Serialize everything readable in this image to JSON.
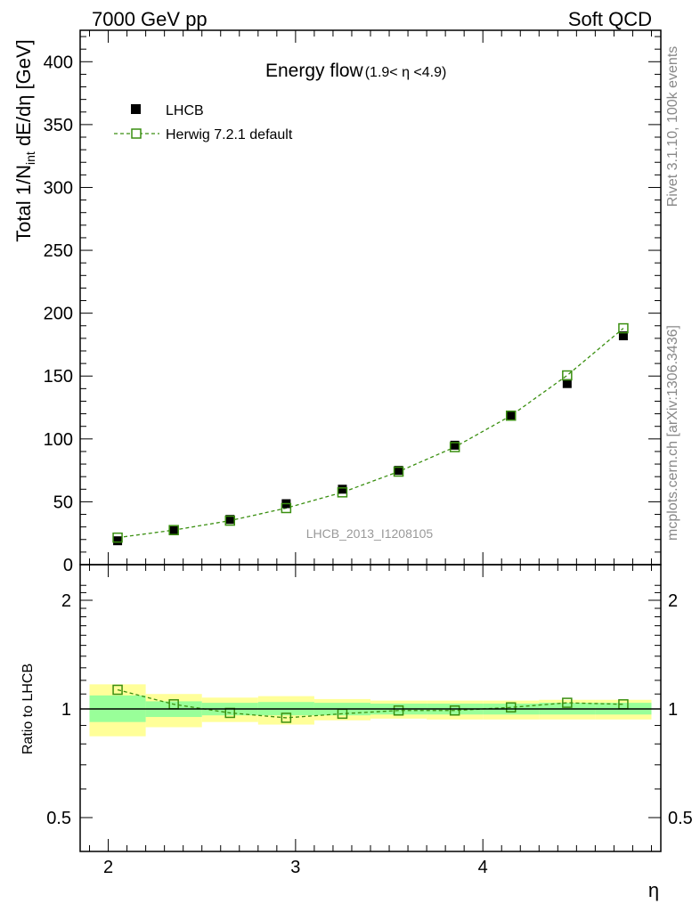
{
  "header": {
    "left": "7000 GeV pp",
    "right": "Soft QCD"
  },
  "side": {
    "rivet": "Rivet 3.1.10,  100k events",
    "ref": "mcplots.cern.ch [arXiv:1306.3436]"
  },
  "chart_data": {
    "type": "scatter",
    "title": "Energy flow",
    "subtitle": "(1.9< η <4.9)",
    "watermark": "LHCB_2013_I1208105",
    "xlabel": "η",
    "ylabel": "Total 1/N",
    "ylabel_sub": "int",
    "ylabel_tail": " dE/dη [GeV]",
    "ratio_ylabel": "Ratio to LHCB",
    "xlim": [
      1.85,
      4.95
    ],
    "ylim": [
      0,
      425
    ],
    "ratio_ylim": [
      0.4,
      2.3
    ],
    "x_ticks": [
      {
        "v": 2,
        "label": "2"
      },
      {
        "v": 3,
        "label": "3"
      },
      {
        "v": 4,
        "label": "4"
      }
    ],
    "y_ticks": [
      {
        "v": 0,
        "label": "0"
      },
      {
        "v": 50,
        "label": "50"
      },
      {
        "v": 100,
        "label": "100"
      },
      {
        "v": 150,
        "label": "150"
      },
      {
        "v": 200,
        "label": "200"
      },
      {
        "v": 250,
        "label": "250"
      },
      {
        "v": 300,
        "label": "300"
      },
      {
        "v": 350,
        "label": "350"
      },
      {
        "v": 400,
        "label": "400"
      }
    ],
    "ratio_ticks": [
      {
        "v": 0.5,
        "label": "0.5"
      },
      {
        "v": 1,
        "label": "1"
      },
      {
        "v": 2,
        "label": "2"
      }
    ],
    "legend_position": "top-left",
    "bin_edges": [
      1.9,
      2.2,
      2.5,
      2.8,
      3.1,
      3.4,
      3.7,
      4.0,
      4.3,
      4.6,
      4.9
    ],
    "x": [
      2.05,
      2.35,
      2.65,
      2.95,
      3.25,
      3.55,
      3.85,
      4.15,
      4.45,
      4.75
    ],
    "series": [
      {
        "name": "LHCB",
        "color": "#000000",
        "marker": "filled-square",
        "values": [
          19,
          27,
          36,
          48.5,
          60,
          75,
          95,
          119,
          144,
          182
        ]
      },
      {
        "name": "Herwig 7.2.1 default",
        "color": "#3a8f10",
        "marker": "open-square",
        "line": "dashed",
        "values": [
          21.5,
          27.5,
          35,
          45,
          57.5,
          74,
          93.5,
          118.5,
          150.5,
          188
        ]
      }
    ],
    "ratio": {
      "values": [
        1.13,
        1.03,
        0.975,
        0.945,
        0.97,
        0.99,
        0.99,
        1.01,
        1.04,
        1.03
      ],
      "band_inner": [
        [
          0.92,
          1.09
        ],
        [
          0.95,
          1.05
        ],
        [
          0.96,
          1.04
        ],
        [
          0.96,
          1.045
        ],
        [
          0.96,
          1.04
        ],
        [
          0.965,
          1.035
        ],
        [
          0.965,
          1.035
        ],
        [
          0.965,
          1.035
        ],
        [
          0.965,
          1.04
        ],
        [
          0.965,
          1.04
        ]
      ],
      "band_outer": [
        [
          0.84,
          1.17
        ],
        [
          0.89,
          1.1
        ],
        [
          0.92,
          1.075
        ],
        [
          0.905,
          1.085
        ],
        [
          0.93,
          1.065
        ],
        [
          0.94,
          1.055
        ],
        [
          0.935,
          1.055
        ],
        [
          0.935,
          1.055
        ],
        [
          0.935,
          1.06
        ],
        [
          0.935,
          1.06
        ]
      ],
      "band_inner_color": "#99ff99",
      "band_outer_color": "#ffff99"
    }
  }
}
